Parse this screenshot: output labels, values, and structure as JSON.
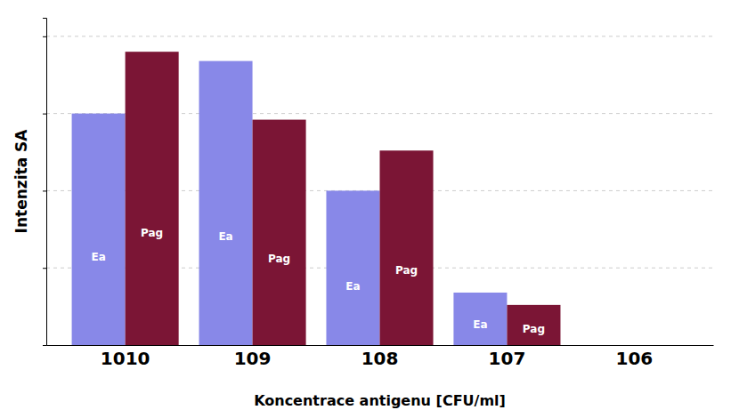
{
  "chart_data": {
    "type": "bar",
    "categories": [
      "1010",
      "109",
      "108",
      "107",
      "106"
    ],
    "series": [
      {
        "name": "Ea",
        "color": "#8888e8",
        "values": [
          75,
          92,
          50,
          17,
          0
        ]
      },
      {
        "name": "Pag",
        "color": "#7b1535",
        "values": [
          95,
          73,
          63,
          13,
          0
        ]
      }
    ],
    "xlabel": "Koncentrace antigenu [CFU/ml]",
    "ylabel": "Intenzita SA",
    "ylim": [
      0,
      106
    ],
    "yticks": [
      25,
      50,
      75,
      100
    ],
    "grid": true,
    "tick_labels": "x"
  }
}
